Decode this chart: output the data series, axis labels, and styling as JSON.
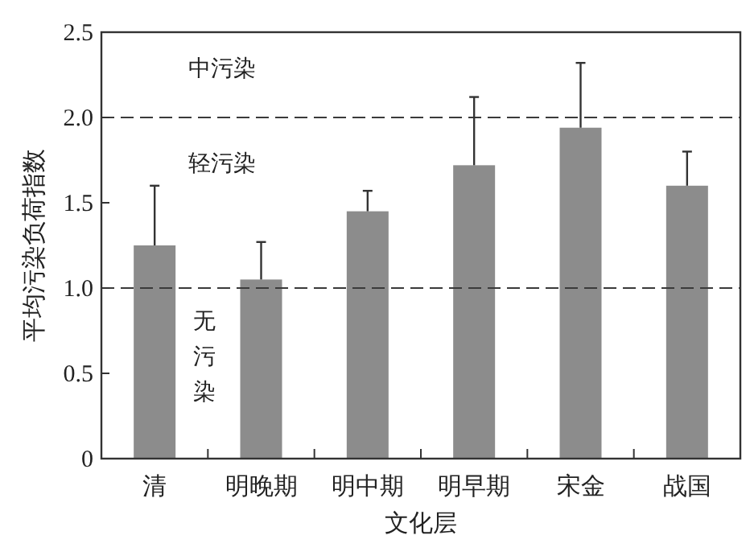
{
  "chart_data": {
    "type": "bar",
    "xlabel": "文化层",
    "ylabel": "平均污染负荷指数",
    "categories": [
      "清",
      "明晚期",
      "明中期",
      "明早期",
      "宋金",
      "战国"
    ],
    "values": [
      1.25,
      1.05,
      1.45,
      1.72,
      1.94,
      1.6
    ],
    "errors": [
      [
        1.25,
        1.6
      ],
      [
        1.05,
        1.27
      ],
      [
        1.45,
        1.57
      ],
      [
        1.72,
        2.12
      ],
      [
        1.94,
        2.32
      ],
      [
        1.6,
        1.8
      ]
    ],
    "color": "#8c8c8c",
    "ylim": [
      0,
      2.5
    ],
    "yticks": [
      0,
      0.5,
      {
        "value": 1,
        "label": "1.0"
      },
      1.5,
      {
        "value": 2,
        "label": "2.0"
      },
      2.5
    ],
    "ref_lines": [
      {
        "axis": "y",
        "value": 1.0,
        "color": "#3a3a3a",
        "line_style": "dashed"
      },
      {
        "axis": "y",
        "value": 2.0,
        "color": "#3a3a3a",
        "line_style": "dashed"
      }
    ],
    "annotations": [
      "中污染",
      "轻污染",
      "无污染"
    ]
  }
}
